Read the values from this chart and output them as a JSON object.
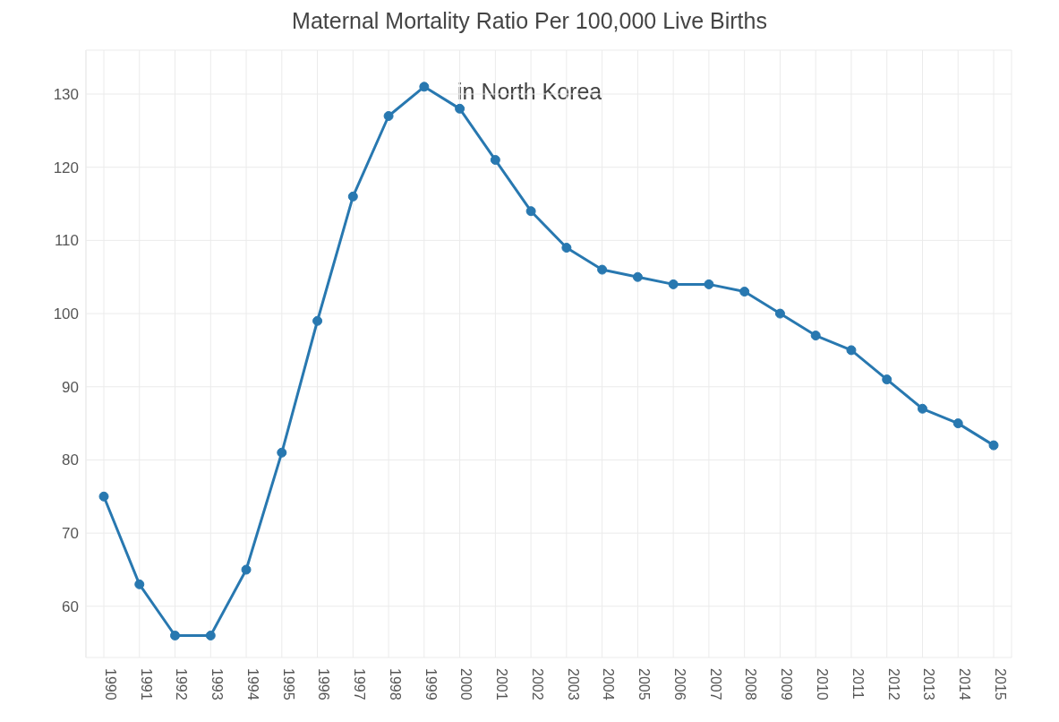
{
  "chart_data": {
    "type": "line",
    "title": "Maternal Mortality Ratio Per 100,000 Live Births",
    "annotations": [
      "in North Korea"
    ],
    "categories": [
      "1990",
      "1991",
      "1992",
      "1993",
      "1994",
      "1995",
      "1996",
      "1997",
      "1998",
      "1999",
      "2000",
      "2001",
      "2002",
      "2003",
      "2004",
      "2005",
      "2006",
      "2007",
      "2008",
      "2009",
      "2010",
      "2011",
      "2012",
      "2013",
      "2014",
      "2015"
    ],
    "series": [
      {
        "color": "#2878b0",
        "values": [
          75,
          63,
          56,
          56,
          65,
          81,
          99,
          116,
          127,
          131,
          128,
          121,
          114,
          109,
          106,
          105,
          104,
          104,
          103,
          100,
          97,
          95,
          91,
          87,
          85,
          82
        ]
      }
    ],
    "ylim": [
      53,
      136
    ],
    "yticks": [
      60,
      70,
      80,
      90,
      100,
      110,
      120,
      130
    ],
    "grid": true,
    "marker": "circle",
    "line_style": "solid",
    "legend": false
  }
}
